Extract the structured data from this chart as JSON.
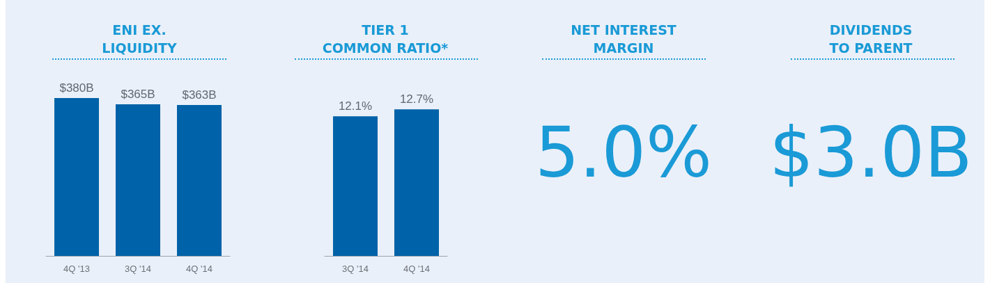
{
  "chart_data": [
    {
      "type": "bar",
      "title": "ENI EX.\nLIQUIDITY",
      "categories": [
        "4Q '13",
        "3Q '14",
        "4Q '14"
      ],
      "values": [
        380,
        365,
        363
      ],
      "color": "#0062a8",
      "value_labels": [
        "$380B",
        "$365B",
        "$363B"
      ]
    },
    {
      "type": "bar",
      "title": "TIER 1\nCOMMON RATIO*",
      "categories": [
        "3Q '14",
        "4Q '14"
      ],
      "values": [
        12.1,
        12.7
      ],
      "color": "#0062a8",
      "value_labels": [
        "12.1%",
        "12.7%"
      ]
    },
    {
      "type": "other",
      "title": "NET INTEREST\nMARGIN",
      "annotations": [
        "5.0%"
      ]
    },
    {
      "type": "other",
      "title": "DIVIDENDS\nTO PARENT",
      "annotations": [
        "$3.0B"
      ]
    }
  ]
}
